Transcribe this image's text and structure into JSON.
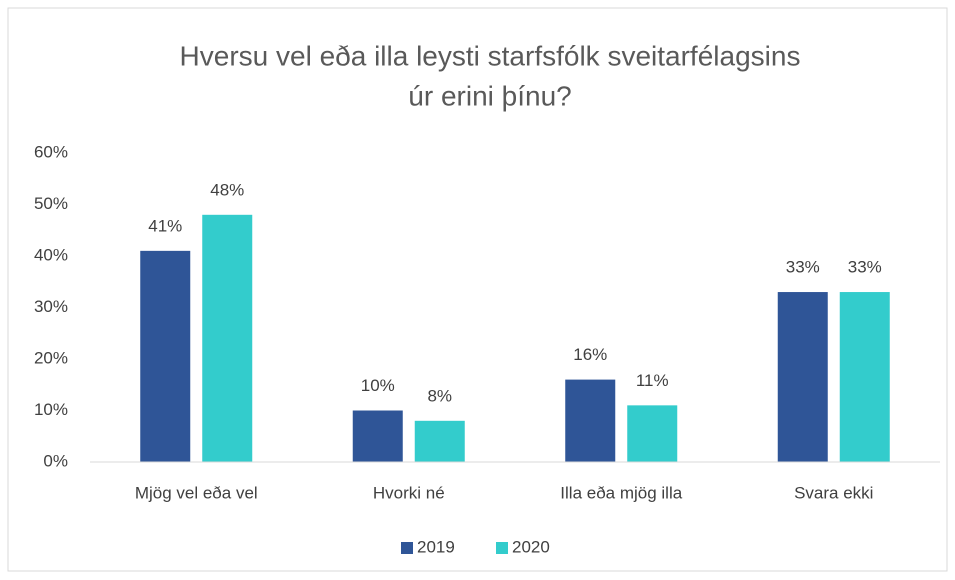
{
  "chart_data": {
    "type": "bar",
    "title": [
      "Hversu vel eða illa leysti starfsfólk sveitarfélagsins",
      "úr erini þínu?"
    ],
    "categories": [
      "Mjög vel eða vel",
      "Hvorki né",
      "Illa eða mjög illa",
      "Svara ekki"
    ],
    "series": [
      {
        "name": "2019",
        "color": "#2f5597",
        "values": [
          41,
          10,
          16,
          33
        ],
        "value_labels": [
          "41%",
          "10%",
          "16%",
          "33%"
        ]
      },
      {
        "name": "2020",
        "color": "#33cccc",
        "values": [
          48,
          8,
          11,
          33
        ],
        "value_labels": [
          "48%",
          "8%",
          "11%",
          "33%"
        ]
      }
    ],
    "ylim": [
      0,
      60
    ],
    "yticks": [
      {
        "value": 0,
        "label": "0%"
      },
      {
        "value": 10,
        "label": "10%"
      },
      {
        "value": 20,
        "label": "20%"
      },
      {
        "value": 30,
        "label": "30%"
      },
      {
        "value": 40,
        "label": "40%"
      },
      {
        "value": 50,
        "label": "50%"
      },
      {
        "value": 60,
        "label": "60%"
      }
    ],
    "grid": false,
    "legend": "bottom"
  }
}
